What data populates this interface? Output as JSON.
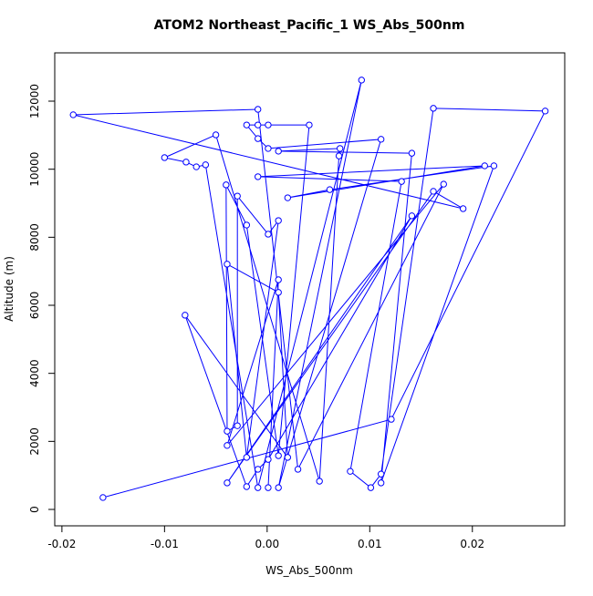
{
  "chart_data": {
    "type": "line",
    "title": "ATOM2 Northeast_Pacific_1 WS_Abs_500nm",
    "xlabel": "WS_Abs_500nm",
    "ylabel": "Altitude (m)",
    "x": [
      -0.016,
      0.0121,
      0.0271,
      0.0162,
      0.0111,
      0.0101,
      0.0081,
      0.0131,
      -0.0009,
      0.0212,
      0.002,
      0.0061,
      0.0221,
      0.0111,
      0.0141,
      0.0011,
      0.0071,
      0.007,
      0.0051,
      -0.005,
      -0.01,
      -0.0079,
      -0.0069,
      -0.006,
      -0.0009,
      0.0092,
      0.0011,
      0.0111,
      0.0001,
      -0.0009,
      -0.002,
      -0.0009,
      0.0001,
      0.0041,
      0.0011,
      -0.002,
      -0.004,
      -0.0039,
      -0.0029,
      -0.0029,
      0.0001,
      0.0011,
      -0.002,
      -0.0039,
      0.0011,
      0.002,
      -0.008,
      -0.002,
      -0.0009,
      0.0001,
      0.0141,
      -0.0039,
      0.0162,
      0.0191,
      -0.0189,
      -0.0009,
      0.003,
      0.0172,
      -0.0039,
      0.0011,
      0.0001
    ],
    "series": [
      {
        "color": "#0000ff",
        "values": [
          350,
          2650,
          11710,
          11790,
          1040,
          640,
          1120,
          9640,
          9780,
          10100,
          9160,
          9400,
          10100,
          780,
          10470,
          10530,
          10610,
          10390,
          830,
          11010,
          10340,
          10210,
          10070,
          10130,
          640,
          12620,
          640,
          10880,
          10610,
          10900,
          11300,
          11300,
          11300,
          11300,
          1580,
          8360,
          9540,
          2300,
          2460,
          9210,
          8090,
          8490,
          1530,
          7210,
          6380,
          1530,
          5710,
          670,
          1180,
          1470,
          8630,
          780,
          9350,
          8840,
          11600,
          11760,
          1180,
          9560,
          1880,
          6750,
          640
        ]
      }
    ],
    "xlim": [
      -0.0207,
      0.029
    ],
    "ylim": [
      -482,
      13420
    ],
    "xticks": [
      -0.02,
      -0.01,
      {
        "value": 0,
        "label": "0.00"
      },
      0.01,
      0.02
    ],
    "yticks": [
      0,
      2000,
      4000,
      6000,
      8000,
      10000,
      12000
    ]
  }
}
